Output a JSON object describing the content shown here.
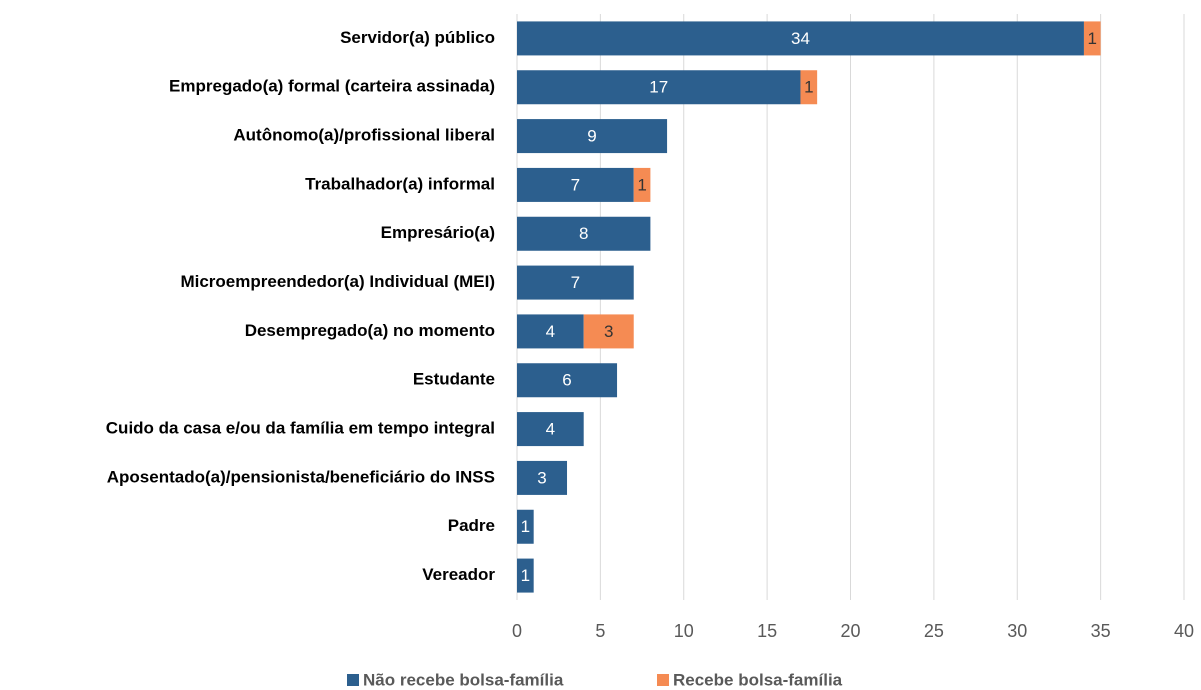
{
  "chart_data": {
    "type": "stacked_barh",
    "categories": [
      "Servidor(a) público",
      "Empregado(a) formal (carteira assinada)",
      "Autônomo(a)/profissional liberal",
      "Trabalhador(a) informal",
      "Empresário(a)",
      "Microempreendedor(a) Individual (MEI)",
      "Desempregado(a) no momento",
      "Estudante",
      "Cuido da casa e/ou da família em tempo integral",
      "Aposentado(a)/pensionista/beneficiário do INSS",
      "Padre",
      "Vereador"
    ],
    "series": [
      {
        "name": "Não recebe bolsa-família",
        "color": "#2c5f8e",
        "label_color": "#ffffff",
        "values": [
          34,
          17,
          9,
          7,
          8,
          7,
          4,
          6,
          4,
          3,
          1,
          1
        ]
      },
      {
        "name": "Recebe bolsa-família",
        "color": "#f58b53",
        "label_color": "#333333",
        "values": [
          1,
          1,
          null,
          1,
          null,
          null,
          3,
          null,
          null,
          null,
          null,
          null
        ]
      }
    ],
    "xlim": [
      0,
      40
    ],
    "xticks": [
      0,
      5,
      10,
      15,
      20,
      25,
      30,
      35,
      40
    ],
    "grid": true,
    "legend": "bottom"
  }
}
